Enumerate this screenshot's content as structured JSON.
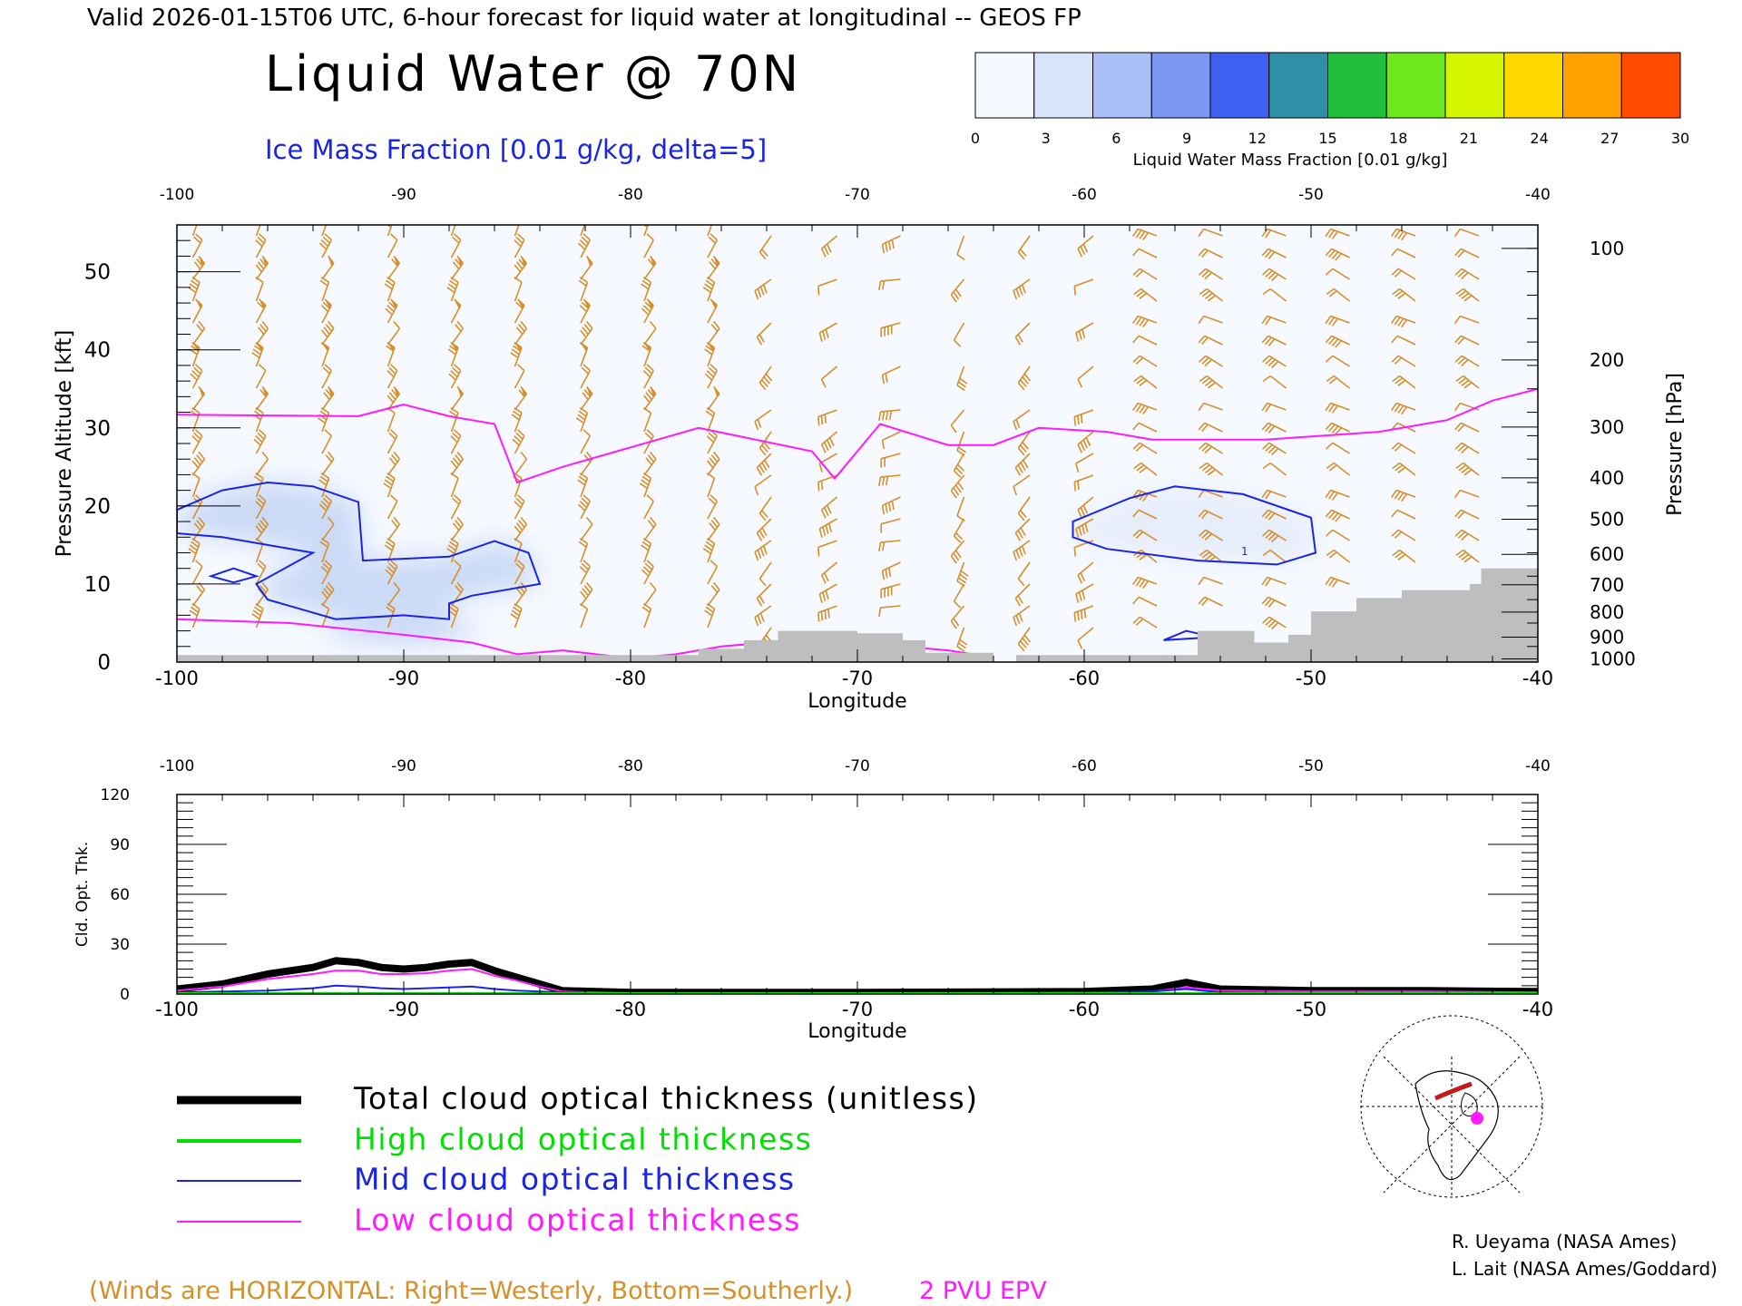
{
  "header": {
    "valid_line": "Valid 2026-01-15T06 UTC, 6-hour forecast for liquid water at longitudinal -- GEOS FP",
    "title": "Liquid Water @ 70N",
    "subtitle": "Ice Mass Fraction [0.01 g/kg, delta=5]"
  },
  "colorbar": {
    "label": "Liquid Water Mass Fraction [0.01 g/kg]",
    "ticks": [
      "0",
      "3",
      "6",
      "9",
      "12",
      "15",
      "18",
      "21",
      "24",
      "27",
      "30"
    ],
    "colors": [
      "#f6f9ff",
      "#d9e4fb",
      "#a8c0f7",
      "#7b97f2",
      "#3f5ff0",
      "#2f8fa8",
      "#22bf3c",
      "#6ce81c",
      "#d6f500",
      "#ffd800",
      "#ffa200",
      "#ff4a00"
    ]
  },
  "colors": {
    "wind_barb": "#d4902a",
    "ice_contour": "#1a24e6",
    "epv_contour": "#ff1aff",
    "terrain": "#bebebe",
    "total_line": "#000000",
    "high_line": "#00e000",
    "mid_line": "#1a24e6",
    "low_line": "#ff1aff",
    "ice_fill": "#c8d8f7"
  },
  "chart_data": [
    {
      "type": "contour-cross-section",
      "xlabel": "Longitude",
      "ylabel_left": "Pressure Altitude [kft]",
      "ylabel_right": "Pressure [hPa]",
      "xlim": [
        -100,
        -40
      ],
      "ylim": [
        0,
        56
      ],
      "x_ticks": [
        "-100",
        "-90",
        "-80",
        "-70",
        "-60",
        "-50",
        "-40"
      ],
      "x_tick_values": [
        -100,
        -90,
        -80,
        -70,
        -60,
        -50,
        -40
      ],
      "y_ticks": [
        "0",
        "10",
        "20",
        "30",
        "40",
        "50"
      ],
      "y_tick_values": [
        0,
        10,
        20,
        30,
        40,
        50
      ],
      "pressure_ticks": [
        {
          "label": "100",
          "kft": 53.0
        },
        {
          "label": "200",
          "kft": 38.7
        },
        {
          "label": "300",
          "kft": 30.1
        },
        {
          "label": "400",
          "kft": 23.6
        },
        {
          "label": "500",
          "kft": 18.3
        },
        {
          "label": "600",
          "kft": 13.8
        },
        {
          "label": "700",
          "kft": 9.9
        },
        {
          "label": "800",
          "kft": 6.4
        },
        {
          "label": "900",
          "kft": 3.2
        },
        {
          "label": "1000",
          "kft": 0.4
        }
      ],
      "epv_2pvu": [
        [
          -100,
          31.7
        ],
        [
          -92,
          31.5
        ],
        [
          -90,
          33
        ],
        [
          -88,
          31.5
        ],
        [
          -86,
          30.5
        ],
        [
          -85,
          23
        ],
        [
          -83,
          25
        ],
        [
          -80,
          27.5
        ],
        [
          -77,
          30
        ],
        [
          -72,
          27
        ],
        [
          -71,
          23.5
        ],
        [
          -69,
          30.5
        ],
        [
          -66,
          27.8
        ],
        [
          -64,
          27.8
        ],
        [
          -62,
          30
        ],
        [
          -59,
          29.5
        ],
        [
          -57,
          28.5
        ],
        [
          -52,
          28.5
        ],
        [
          -47,
          29.5
        ],
        [
          -44,
          31
        ],
        [
          -42,
          33.5
        ],
        [
          -40,
          35
        ]
      ],
      "epv_low": [
        [
          -100,
          5.5
        ],
        [
          -95,
          5
        ],
        [
          -90,
          3.5
        ],
        [
          -87,
          2.5
        ],
        [
          -85,
          1
        ],
        [
          -83,
          1.5
        ],
        [
          -80,
          0.5
        ],
        [
          -78,
          1
        ],
        [
          -76,
          2
        ],
        [
          -72,
          3
        ],
        [
          -70,
          2.5
        ],
        [
          -66,
          1.5
        ],
        [
          -64,
          0.6
        ]
      ],
      "ice_contour_west": [
        [
          -100,
          19.5
        ],
        [
          -98,
          22
        ],
        [
          -96,
          23
        ],
        [
          -94,
          22.5
        ],
        [
          -92,
          20.5
        ],
        [
          -91.8,
          13
        ],
        [
          -88,
          13.5
        ],
        [
          -86,
          15.5
        ],
        [
          -84.5,
          14
        ],
        [
          -84,
          10
        ],
        [
          -87,
          8.5
        ],
        [
          -88,
          7.5
        ],
        [
          -88,
          5.5
        ],
        [
          -90,
          6
        ],
        [
          -93,
          5.5
        ],
        [
          -96,
          8
        ],
        [
          -96.5,
          10
        ],
        [
          -94,
          14
        ],
        [
          -96,
          15
        ],
        [
          -98,
          16
        ],
        [
          -100,
          16.5
        ]
      ],
      "ice_contour_east": [
        [
          -60.5,
          18
        ],
        [
          -58,
          21
        ],
        [
          -56,
          22.5
        ],
        [
          -53,
          21.5
        ],
        [
          -50,
          18.5
        ],
        [
          -49.8,
          14
        ],
        [
          -51.5,
          12.5
        ],
        [
          -55,
          13
        ],
        [
          -59,
          14.5
        ],
        [
          -60.5,
          16
        ]
      ],
      "terrain_steps": [
        [
          -100,
          0.9
        ],
        [
          -78,
          0.9
        ],
        [
          -77,
          1.7
        ],
        [
          -75,
          2.8
        ],
        [
          -73.5,
          4
        ],
        [
          -70,
          3.7
        ],
        [
          -68,
          2.8
        ],
        [
          -67,
          1.2
        ],
        [
          -64,
          0.1
        ],
        [
          -63,
          0.9
        ],
        [
          -56,
          0.9
        ],
        [
          -55,
          4
        ],
        [
          -52.5,
          2.5
        ],
        [
          -51,
          3.5
        ],
        [
          -50,
          6.5
        ],
        [
          -48,
          8.2
        ],
        [
          -46,
          9.2
        ],
        [
          -43,
          10
        ],
        [
          -42.5,
          12
        ],
        [
          -40,
          12
        ]
      ],
      "wind_barb_columns": [
        -99.3,
        -96.5,
        -93.6,
        -90.7,
        -87.9,
        -85.1,
        -82.2,
        -79.4,
        -76.6,
        -73.8,
        -70.9,
        -68.1,
        -65.3,
        -62.4,
        -59.6,
        -56.8,
        -53.9,
        -51.1,
        -48.3,
        -45.4,
        -42.6
      ]
    },
    {
      "type": "line",
      "xlabel": "Longitude",
      "ylabel": "Cld. Opt. Thk.",
      "xlim": [
        -100,
        -40
      ],
      "ylim": [
        0,
        120
      ],
      "x_ticks": [
        "-100",
        "-90",
        "-80",
        "-70",
        "-60",
        "-50",
        "-40"
      ],
      "x_tick_values": [
        -100,
        -90,
        -80,
        -70,
        -60,
        -50,
        -40
      ],
      "y_ticks": [
        "0",
        "30",
        "60",
        "90",
        "120"
      ],
      "y_tick_values": [
        0,
        30,
        60,
        90,
        120
      ],
      "x": [
        -100,
        -98,
        -96,
        -94,
        -93,
        -92,
        -91,
        -90,
        -89,
        -88,
        -87,
        -86,
        -85,
        -84,
        -83,
        -80,
        -70,
        -60,
        -57,
        -55.5,
        -54,
        -50,
        -45,
        -40
      ],
      "series": [
        {
          "name": "Total cloud optical thickness (unitless)",
          "color": "#000000",
          "values": [
            3,
            6,
            12,
            16,
            20,
            19,
            16,
            15,
            16,
            18,
            19,
            14,
            10,
            6,
            2,
            1,
            1,
            1.5,
            3,
            7,
            3,
            2,
            2,
            1.5
          ]
        },
        {
          "name": "High cloud optical thickness",
          "color": "#00e000",
          "values": [
            0,
            0,
            0,
            0,
            0,
            0,
            0,
            0,
            0,
            0,
            0,
            0,
            0,
            0,
            0,
            0,
            0,
            0,
            0,
            0,
            0,
            0,
            0,
            0
          ]
        },
        {
          "name": "Mid cloud optical thickness",
          "color": "#1a24e6",
          "values": [
            1,
            1.5,
            2,
            3.5,
            5,
            4.5,
            3.5,
            3,
            3.5,
            4,
            4.5,
            3,
            2,
            1.5,
            1,
            0.5,
            0.5,
            1,
            1.5,
            3,
            1,
            0.5,
            0.5,
            0.5
          ]
        },
        {
          "name": "Low cloud optical thickness",
          "color": "#ff1aff",
          "values": [
            2,
            4.5,
            9,
            12,
            14,
            14,
            12,
            12,
            12.5,
            14,
            15,
            11,
            8,
            4.5,
            1.5,
            0.5,
            0.5,
            0.5,
            1.5,
            4,
            2,
            1.5,
            1.5,
            1
          ]
        }
      ]
    }
  ],
  "legend": {
    "total": "Total cloud optical thickness (unitless)",
    "high": "High cloud optical thickness",
    "mid": "Mid cloud optical thickness",
    "low": "Low cloud optical thickness"
  },
  "footer": {
    "winds_note": "(Winds are HORIZONTAL: Right=Westerly, Bottom=Southerly.)",
    "epv_label": "2 PVU EPV",
    "credit1": "R. Ueyama (NASA Ames)",
    "credit2": "L. Lait (NASA Ames/Goddard)"
  },
  "contour_labels": {
    "ice_label": "1"
  }
}
